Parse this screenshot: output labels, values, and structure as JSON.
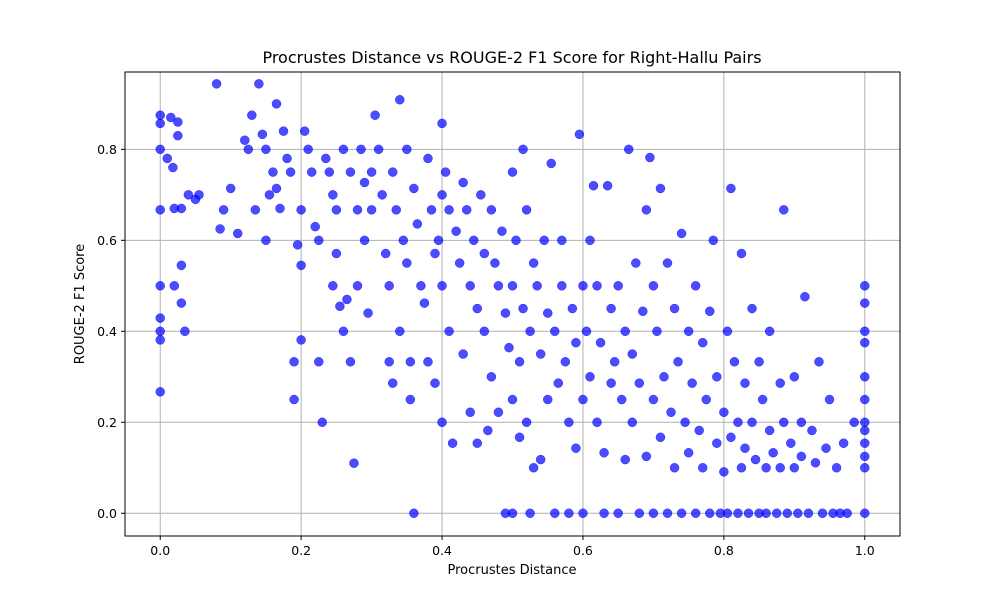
{
  "chart_data": {
    "type": "scatter",
    "title": "Procrustes Distance vs ROUGE-2 F1 Score for Right-Hallu Pairs",
    "xlabel": "Procrustes Distance",
    "ylabel": "ROUGE-2 F1 Score",
    "xlim": [
      -0.05,
      1.05
    ],
    "ylim": [
      -0.05,
      0.97
    ],
    "xticks": [
      0.0,
      0.2,
      0.4,
      0.6,
      0.8,
      1.0
    ],
    "xtick_labels": [
      "0.0",
      "0.2",
      "0.4",
      "0.6",
      "0.8",
      "1.0"
    ],
    "yticks": [
      0.0,
      0.2,
      0.4,
      0.6,
      0.8
    ],
    "ytick_labels": [
      "0.0",
      "0.2",
      "0.4",
      "0.6",
      "0.8"
    ],
    "grid": true,
    "marker_color": "#0000ff",
    "marker_alpha": 0.7,
    "series": [
      {
        "points": [
          [
            0.0,
            0.875
          ],
          [
            0.0,
            0.857
          ],
          [
            0.0,
            0.8
          ],
          [
            0.0,
            0.667
          ],
          [
            0.0,
            0.5
          ],
          [
            0.0,
            0.429
          ],
          [
            0.0,
            0.4
          ],
          [
            0.0,
            0.381
          ],
          [
            0.0,
            0.267
          ],
          [
            0.01,
            0.78
          ],
          [
            0.015,
            0.87
          ],
          [
            0.018,
            0.76
          ],
          [
            0.02,
            0.67
          ],
          [
            0.02,
            0.5
          ],
          [
            0.025,
            0.86
          ],
          [
            0.025,
            0.83
          ],
          [
            0.03,
            0.67
          ],
          [
            0.03,
            0.545
          ],
          [
            0.03,
            0.462
          ],
          [
            0.035,
            0.4
          ],
          [
            0.04,
            0.7
          ],
          [
            0.05,
            0.69
          ],
          [
            0.055,
            0.7
          ],
          [
            0.08,
            0.944
          ],
          [
            0.085,
            0.625
          ],
          [
            0.09,
            0.667
          ],
          [
            0.1,
            0.714
          ],
          [
            0.11,
            0.615
          ],
          [
            0.12,
            0.82
          ],
          [
            0.125,
            0.8
          ],
          [
            0.13,
            0.875
          ],
          [
            0.135,
            0.667
          ],
          [
            0.14,
            0.944
          ],
          [
            0.145,
            0.833
          ],
          [
            0.15,
            0.8
          ],
          [
            0.15,
            0.6
          ],
          [
            0.155,
            0.7
          ],
          [
            0.16,
            0.75
          ],
          [
            0.165,
            0.714
          ],
          [
            0.165,
            0.9
          ],
          [
            0.17,
            0.67
          ],
          [
            0.175,
            0.84
          ],
          [
            0.18,
            0.78
          ],
          [
            0.185,
            0.75
          ],
          [
            0.19,
            0.333
          ],
          [
            0.19,
            0.25
          ],
          [
            0.195,
            0.59
          ],
          [
            0.2,
            0.667
          ],
          [
            0.2,
            0.545
          ],
          [
            0.2,
            0.381
          ],
          [
            0.205,
            0.84
          ],
          [
            0.21,
            0.8
          ],
          [
            0.215,
            0.75
          ],
          [
            0.22,
            0.63
          ],
          [
            0.225,
            0.6
          ],
          [
            0.225,
            0.333
          ],
          [
            0.23,
            0.2
          ],
          [
            0.235,
            0.78
          ],
          [
            0.24,
            0.75
          ],
          [
            0.245,
            0.7
          ],
          [
            0.245,
            0.5
          ],
          [
            0.25,
            0.667
          ],
          [
            0.25,
            0.571
          ],
          [
            0.255,
            0.455
          ],
          [
            0.26,
            0.8
          ],
          [
            0.26,
            0.4
          ],
          [
            0.265,
            0.47
          ],
          [
            0.27,
            0.75
          ],
          [
            0.27,
            0.333
          ],
          [
            0.275,
            0.11
          ],
          [
            0.28,
            0.667
          ],
          [
            0.28,
            0.5
          ],
          [
            0.285,
            0.8
          ],
          [
            0.29,
            0.727
          ],
          [
            0.29,
            0.6
          ],
          [
            0.295,
            0.44
          ],
          [
            0.3,
            0.75
          ],
          [
            0.3,
            0.667
          ],
          [
            0.305,
            0.875
          ],
          [
            0.31,
            0.8
          ],
          [
            0.315,
            0.7
          ],
          [
            0.32,
            0.571
          ],
          [
            0.325,
            0.5
          ],
          [
            0.325,
            0.333
          ],
          [
            0.33,
            0.75
          ],
          [
            0.33,
            0.286
          ],
          [
            0.335,
            0.667
          ],
          [
            0.34,
            0.909
          ],
          [
            0.34,
            0.4
          ],
          [
            0.345,
            0.6
          ],
          [
            0.35,
            0.8
          ],
          [
            0.35,
            0.55
          ],
          [
            0.355,
            0.333
          ],
          [
            0.355,
            0.25
          ],
          [
            0.36,
            0.714
          ],
          [
            0.36,
            0.0
          ],
          [
            0.365,
            0.636
          ],
          [
            0.37,
            0.5
          ],
          [
            0.375,
            0.462
          ],
          [
            0.38,
            0.78
          ],
          [
            0.38,
            0.333
          ],
          [
            0.385,
            0.667
          ],
          [
            0.39,
            0.571
          ],
          [
            0.39,
            0.286
          ],
          [
            0.395,
            0.6
          ],
          [
            0.4,
            0.857
          ],
          [
            0.4,
            0.7
          ],
          [
            0.4,
            0.5
          ],
          [
            0.4,
            0.2
          ],
          [
            0.405,
            0.75
          ],
          [
            0.41,
            0.667
          ],
          [
            0.41,
            0.4
          ],
          [
            0.415,
            0.154
          ],
          [
            0.42,
            0.62
          ],
          [
            0.425,
            0.55
          ],
          [
            0.43,
            0.727
          ],
          [
            0.43,
            0.35
          ],
          [
            0.435,
            0.667
          ],
          [
            0.44,
            0.5
          ],
          [
            0.44,
            0.222
          ],
          [
            0.445,
            0.6
          ],
          [
            0.45,
            0.45
          ],
          [
            0.45,
            0.154
          ],
          [
            0.455,
            0.7
          ],
          [
            0.46,
            0.571
          ],
          [
            0.46,
            0.4
          ],
          [
            0.465,
            0.182
          ],
          [
            0.47,
            0.667
          ],
          [
            0.47,
            0.3
          ],
          [
            0.475,
            0.55
          ],
          [
            0.48,
            0.5
          ],
          [
            0.48,
            0.222
          ],
          [
            0.485,
            0.62
          ],
          [
            0.49,
            0.44
          ],
          [
            0.49,
            0.0
          ],
          [
            0.495,
            0.364
          ],
          [
            0.5,
            0.75
          ],
          [
            0.5,
            0.5
          ],
          [
            0.5,
            0.25
          ],
          [
            0.5,
            0.0
          ],
          [
            0.505,
            0.6
          ],
          [
            0.51,
            0.333
          ],
          [
            0.51,
            0.167
          ],
          [
            0.515,
            0.8
          ],
          [
            0.515,
            0.45
          ],
          [
            0.52,
            0.667
          ],
          [
            0.52,
            0.2
          ],
          [
            0.525,
            0.4
          ],
          [
            0.525,
            0.0
          ],
          [
            0.53,
            0.55
          ],
          [
            0.53,
            0.1
          ],
          [
            0.535,
            0.5
          ],
          [
            0.54,
            0.35
          ],
          [
            0.54,
            0.118
          ],
          [
            0.545,
            0.6
          ],
          [
            0.55,
            0.44
          ],
          [
            0.55,
            0.25
          ],
          [
            0.555,
            0.769
          ],
          [
            0.56,
            0.4
          ],
          [
            0.56,
            0.0
          ],
          [
            0.565,
            0.286
          ],
          [
            0.57,
            0.6
          ],
          [
            0.57,
            0.5
          ],
          [
            0.575,
            0.333
          ],
          [
            0.58,
            0.2
          ],
          [
            0.58,
            0.0
          ],
          [
            0.585,
            0.45
          ],
          [
            0.59,
            0.375
          ],
          [
            0.59,
            0.143
          ],
          [
            0.595,
            0.833
          ],
          [
            0.6,
            0.5
          ],
          [
            0.6,
            0.25
          ],
          [
            0.6,
            0.0
          ],
          [
            0.605,
            0.4
          ],
          [
            0.61,
            0.6
          ],
          [
            0.61,
            0.3
          ],
          [
            0.615,
            0.72
          ],
          [
            0.62,
            0.5
          ],
          [
            0.62,
            0.2
          ],
          [
            0.625,
            0.375
          ],
          [
            0.63,
            0.0
          ],
          [
            0.63,
            0.133
          ],
          [
            0.635,
            0.72
          ],
          [
            0.64,
            0.45
          ],
          [
            0.64,
            0.286
          ],
          [
            0.645,
            0.333
          ],
          [
            0.65,
            0.5
          ],
          [
            0.65,
            0.0
          ],
          [
            0.655,
            0.25
          ],
          [
            0.66,
            0.4
          ],
          [
            0.66,
            0.118
          ],
          [
            0.665,
            0.8
          ],
          [
            0.67,
            0.35
          ],
          [
            0.67,
            0.2
          ],
          [
            0.675,
            0.55
          ],
          [
            0.68,
            0.286
          ],
          [
            0.68,
            0.0
          ],
          [
            0.685,
            0.444
          ],
          [
            0.69,
            0.667
          ],
          [
            0.69,
            0.125
          ],
          [
            0.695,
            0.782
          ],
          [
            0.7,
            0.5
          ],
          [
            0.7,
            0.25
          ],
          [
            0.7,
            0.0
          ],
          [
            0.705,
            0.4
          ],
          [
            0.71,
            0.714
          ],
          [
            0.71,
            0.167
          ],
          [
            0.715,
            0.3
          ],
          [
            0.72,
            0.55
          ],
          [
            0.72,
            0.0
          ],
          [
            0.725,
            0.222
          ],
          [
            0.73,
            0.45
          ],
          [
            0.73,
            0.1
          ],
          [
            0.735,
            0.333
          ],
          [
            0.74,
            0.615
          ],
          [
            0.74,
            0.0
          ],
          [
            0.745,
            0.2
          ],
          [
            0.75,
            0.4
          ],
          [
            0.75,
            0.133
          ],
          [
            0.755,
            0.286
          ],
          [
            0.76,
            0.5
          ],
          [
            0.76,
            0.0
          ],
          [
            0.765,
            0.182
          ],
          [
            0.77,
            0.375
          ],
          [
            0.77,
            0.1
          ],
          [
            0.775,
            0.25
          ],
          [
            0.78,
            0.444
          ],
          [
            0.78,
            0.0
          ],
          [
            0.785,
            0.6
          ],
          [
            0.79,
            0.3
          ],
          [
            0.79,
            0.154
          ],
          [
            0.795,
            0.0
          ],
          [
            0.8,
            0.222
          ],
          [
            0.8,
            0.091
          ],
          [
            0.805,
            0.4
          ],
          [
            0.805,
            0.0
          ],
          [
            0.81,
            0.714
          ],
          [
            0.81,
            0.167
          ],
          [
            0.815,
            0.333
          ],
          [
            0.82,
            0.2
          ],
          [
            0.82,
            0.0
          ],
          [
            0.825,
            0.571
          ],
          [
            0.825,
            0.1
          ],
          [
            0.83,
            0.286
          ],
          [
            0.83,
            0.143
          ],
          [
            0.835,
            0.0
          ],
          [
            0.84,
            0.45
          ],
          [
            0.84,
            0.2
          ],
          [
            0.845,
            0.118
          ],
          [
            0.85,
            0.333
          ],
          [
            0.85,
            0.0
          ],
          [
            0.855,
            0.25
          ],
          [
            0.86,
            0.1
          ],
          [
            0.86,
            0.0
          ],
          [
            0.865,
            0.4
          ],
          [
            0.865,
            0.182
          ],
          [
            0.87,
            0.133
          ],
          [
            0.875,
            0.0
          ],
          [
            0.88,
            0.286
          ],
          [
            0.88,
            0.1
          ],
          [
            0.885,
            0.667
          ],
          [
            0.885,
            0.2
          ],
          [
            0.89,
            0.0
          ],
          [
            0.895,
            0.154
          ],
          [
            0.9,
            0.3
          ],
          [
            0.9,
            0.1
          ],
          [
            0.905,
            0.0
          ],
          [
            0.91,
            0.2
          ],
          [
            0.91,
            0.125
          ],
          [
            0.915,
            0.476
          ],
          [
            0.92,
            0.0
          ],
          [
            0.925,
            0.182
          ],
          [
            0.93,
            0.111
          ],
          [
            0.935,
            0.333
          ],
          [
            0.94,
            0.0
          ],
          [
            0.945,
            0.143
          ],
          [
            0.95,
            0.25
          ],
          [
            0.955,
            0.0
          ],
          [
            0.96,
            0.1
          ],
          [
            0.965,
            0.0
          ],
          [
            0.97,
            0.154
          ],
          [
            0.975,
            0.0
          ],
          [
            0.985,
            0.2
          ],
          [
            1.0,
            0.5
          ],
          [
            1.0,
            0.462
          ],
          [
            1.0,
            0.4
          ],
          [
            1.0,
            0.375
          ],
          [
            1.0,
            0.3
          ],
          [
            1.0,
            0.25
          ],
          [
            1.0,
            0.2
          ],
          [
            1.0,
            0.182
          ],
          [
            1.0,
            0.154
          ],
          [
            1.0,
            0.125
          ],
          [
            1.0,
            0.1
          ],
          [
            1.0,
            0.0
          ]
        ]
      }
    ]
  }
}
